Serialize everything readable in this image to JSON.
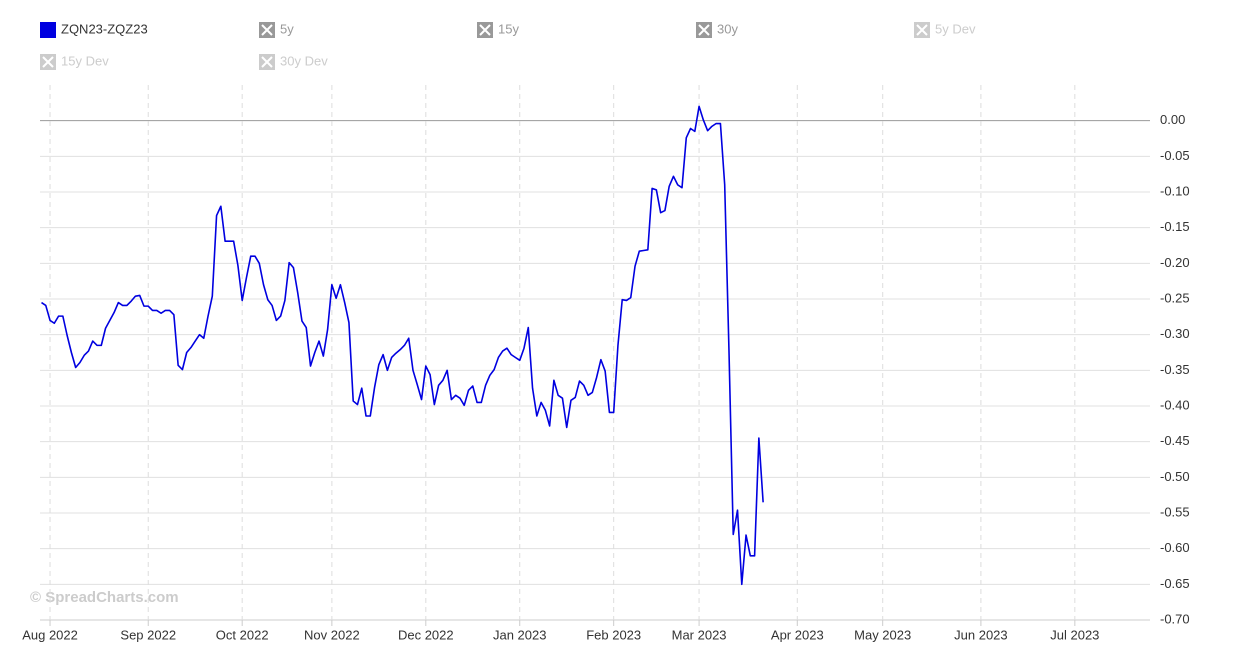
{
  "chart_data": {
    "type": "line",
    "watermark": "© SpreadCharts.com",
    "categories": [
      null,
      null,
      "Aug 2022",
      null,
      null,
      null,
      null,
      null,
      null,
      null,
      null,
      null,
      null,
      null,
      null,
      null,
      null,
      null,
      null,
      null,
      null,
      null,
      null,
      null,
      null,
      "Sep 2022",
      null,
      null,
      null,
      null,
      null,
      null,
      null,
      null,
      null,
      null,
      null,
      null,
      null,
      null,
      null,
      null,
      null,
      null,
      null,
      null,
      null,
      "Oct 2022",
      null,
      null,
      null,
      null,
      null,
      null,
      null,
      null,
      null,
      null,
      null,
      null,
      null,
      null,
      null,
      null,
      null,
      null,
      null,
      null,
      "Nov 2022",
      null,
      null,
      null,
      null,
      null,
      null,
      null,
      null,
      null,
      null,
      null,
      null,
      null,
      null,
      null,
      null,
      null,
      null,
      null,
      null,
      null,
      "Dec 2022",
      null,
      null,
      null,
      null,
      null,
      null,
      null,
      null,
      null,
      null,
      null,
      null,
      null,
      null,
      null,
      null,
      null,
      null,
      null,
      null,
      null,
      "Jan 2023",
      null,
      null,
      null,
      null,
      null,
      null,
      null,
      null,
      null,
      null,
      null,
      null,
      null,
      null,
      null,
      null,
      null,
      null,
      null,
      null,
      null,
      "Feb 2023",
      null,
      null,
      null,
      null,
      null,
      null,
      null,
      null,
      null,
      null,
      null,
      null,
      null,
      null,
      null,
      null,
      null,
      null,
      null,
      "Mar 2023",
      null,
      null,
      null,
      null,
      null,
      null,
      null,
      null,
      null,
      null,
      null,
      null,
      null,
      null,
      null,
      null,
      null,
      null,
      null,
      null,
      null,
      null,
      "Apr 2023",
      null,
      null,
      null,
      null,
      null,
      null,
      null,
      null,
      null,
      null,
      null,
      null,
      null,
      null,
      null,
      null,
      null,
      null,
      null,
      "May 2023",
      null,
      null,
      null,
      null,
      null,
      null,
      null,
      null,
      null,
      null,
      null,
      null,
      null,
      null,
      null,
      null,
      null,
      null,
      null,
      null,
      null,
      null,
      "Jun 2023",
      null,
      null,
      null,
      null,
      null,
      null,
      null,
      null,
      null,
      null,
      null,
      null,
      null,
      null,
      null,
      null,
      null,
      null,
      null,
      null,
      null,
      "Jul 2023",
      null,
      null,
      null,
      null,
      null,
      null,
      null,
      null,
      null,
      null,
      null,
      null,
      null,
      null,
      null,
      null,
      null
    ],
    "series": [
      {
        "name": "ZQN23-ZQZ23",
        "color": "#0000e0",
        "values": [
          -0.255,
          -0.259,
          -0.28,
          -0.284,
          -0.274,
          -0.274,
          -0.301,
          -0.325,
          -0.346,
          -0.339,
          -0.329,
          -0.323,
          -0.309,
          -0.315,
          -0.315,
          -0.291,
          -0.28,
          -0.269,
          -0.255,
          -0.259,
          -0.259,
          -0.253,
          -0.246,
          -0.245,
          -0.26,
          -0.26,
          -0.266,
          -0.266,
          -0.27,
          -0.266,
          -0.266,
          -0.272,
          -0.343,
          -0.349,
          -0.325,
          -0.318,
          -0.309,
          -0.3,
          -0.305,
          -0.274,
          -0.246,
          -0.133,
          -0.12,
          -0.169,
          -0.169,
          -0.169,
          -0.203,
          -0.252,
          -0.22,
          -0.19,
          -0.19,
          -0.2,
          -0.23,
          -0.251,
          -0.259,
          -0.28,
          -0.274,
          -0.252,
          -0.199,
          -0.206,
          -0.241,
          -0.281,
          -0.29,
          -0.344,
          -0.325,
          -0.309,
          -0.33,
          -0.293,
          -0.23,
          -0.249,
          -0.23,
          -0.255,
          -0.283,
          -0.393,
          -0.398,
          -0.375,
          -0.414,
          -0.414,
          -0.374,
          -0.342,
          -0.328,
          -0.35,
          -0.332,
          -0.326,
          -0.321,
          -0.315,
          -0.305,
          -0.35,
          -0.37,
          -0.391,
          -0.344,
          -0.356,
          -0.398,
          -0.371,
          -0.364,
          -0.35,
          -0.391,
          -0.385,
          -0.389,
          -0.399,
          -0.378,
          -0.372,
          -0.395,
          -0.395,
          -0.371,
          -0.357,
          -0.349,
          -0.332,
          -0.323,
          -0.319,
          -0.328,
          -0.332,
          -0.336,
          -0.319,
          -0.29,
          -0.375,
          -0.414,
          -0.395,
          -0.406,
          -0.428,
          -0.364,
          -0.385,
          -0.389,
          -0.43,
          -0.392,
          -0.388,
          -0.365,
          -0.371,
          -0.385,
          -0.381,
          -0.36,
          -0.335,
          -0.351,
          -0.409,
          -0.409,
          -0.315,
          -0.251,
          -0.252,
          -0.248,
          -0.204,
          -0.183,
          -0.182,
          -0.181,
          -0.095,
          -0.097,
          -0.129,
          -0.126,
          -0.092,
          -0.078,
          -0.09,
          -0.094,
          -0.024,
          -0.011,
          -0.015,
          0.02,
          0.001,
          -0.014,
          -0.008,
          -0.004,
          -0.004,
          -0.09,
          -0.322,
          -0.58,
          -0.546,
          -0.65,
          -0.581,
          -0.61,
          -0.61,
          -0.445,
          -0.535,
          null,
          null,
          null,
          null,
          null,
          null,
          null,
          null,
          null,
          null,
          null,
          null,
          null,
          null,
          null,
          null,
          null,
          null,
          null,
          null,
          null,
          null,
          null,
          null,
          null,
          null,
          null,
          null,
          null,
          null,
          null,
          null,
          null,
          null,
          null,
          null,
          null,
          null,
          null,
          null,
          null,
          null,
          null,
          null,
          null,
          null,
          null,
          null,
          null,
          null,
          null,
          null,
          null,
          null,
          null,
          null,
          null,
          null,
          null,
          null,
          null,
          null,
          null,
          null,
          null,
          null,
          null,
          null,
          null,
          null,
          null,
          null,
          null,
          null,
          null,
          null,
          null,
          null,
          null,
          null,
          null,
          null,
          null,
          null,
          null,
          null,
          null,
          null,
          null,
          null
        ]
      }
    ],
    "hidden_series": [
      {
        "name": "5y",
        "color": "#999999"
      },
      {
        "name": "15y",
        "color": "#999999"
      },
      {
        "name": "30y",
        "color": "#999999"
      },
      {
        "name": "5y Dev",
        "color": "#cccccc"
      },
      {
        "name": "15y Dev",
        "color": "#cccccc"
      },
      {
        "name": "30y Dev",
        "color": "#cccccc"
      }
    ],
    "ylim": [
      -0.7,
      0.05
    ],
    "yticks": [
      {
        "value": 0,
        "label": "0.00"
      },
      {
        "value": -0.05,
        "label": "-0.05"
      },
      {
        "value": -0.1,
        "label": "-0.10"
      },
      {
        "value": -0.15,
        "label": "-0.15"
      },
      {
        "value": -0.2,
        "label": "-0.20"
      },
      {
        "value": -0.25,
        "label": "-0.25"
      },
      {
        "value": -0.3,
        "label": "-0.30"
      },
      {
        "value": -0.35,
        "label": "-0.35"
      },
      {
        "value": -0.4,
        "label": "-0.40"
      },
      {
        "value": -0.45,
        "label": "-0.45"
      },
      {
        "value": -0.5,
        "label": "-0.50"
      },
      {
        "value": -0.55,
        "label": "-0.55"
      },
      {
        "value": -0.6,
        "label": "-0.60"
      },
      {
        "value": -0.65,
        "label": "-0.65"
      },
      {
        "value": -0.7,
        "label": "-0.70"
      }
    ],
    "grid": true
  }
}
